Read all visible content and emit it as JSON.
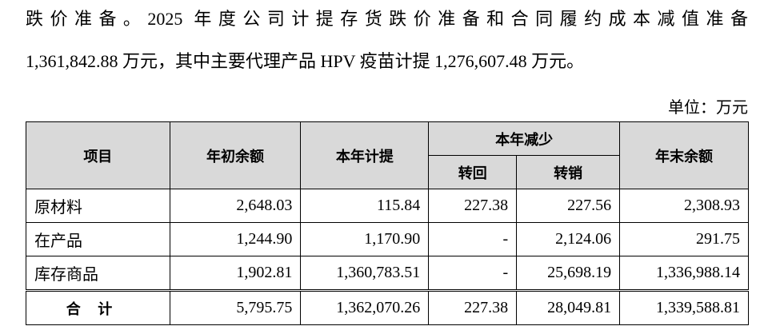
{
  "paragraph": {
    "lines": [
      "跌价准备。2025 年度公司计提存货跌价准备和合同履约成本减值准备",
      "1,361,842.88 万元，其中主要代理产品 HPV 疫苗计提 1,276,607.48 万元。"
    ]
  },
  "unit": "单位：万元",
  "table": {
    "headers": {
      "item": "项目",
      "opening": "年初余额",
      "accrued": "本年计提",
      "decrease": "本年减少",
      "reversal": "转回",
      "writeoff": "转销",
      "closing": "年末余额"
    },
    "rows": [
      [
        "原材料",
        "2,648.03",
        "115.84",
        "227.38",
        "227.56",
        "2,308.93"
      ],
      [
        "在产品",
        "1,244.90",
        "1,170.90",
        "-",
        "2,124.06",
        "291.75"
      ],
      [
        "库存商品",
        "1,902.81",
        "1,360,783.51",
        "-",
        "25,698.19",
        "1,336,988.14"
      ]
    ],
    "total": [
      "合计",
      "5,795.75",
      "1,362,070.26",
      "227.38",
      "28,049.81",
      "1,339,588.81"
    ]
  }
}
